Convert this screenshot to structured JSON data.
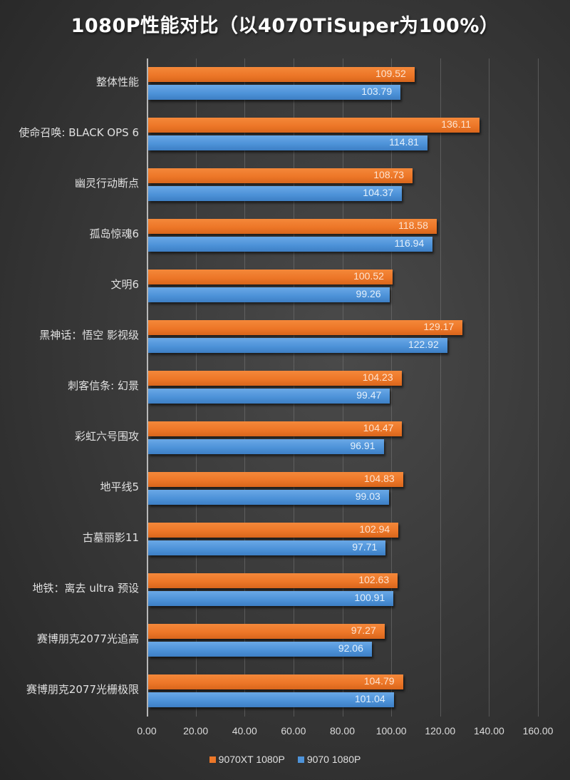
{
  "title": "1080P性能对比（以4070TiSuper为100%）",
  "colors": {
    "series1": "#ed7728",
    "series2": "#4e93d9",
    "background": "#3a3a3a"
  },
  "legend": [
    {
      "label": "9070XT 1080P",
      "color": "#ed7728"
    },
    {
      "label": "9070 1080P",
      "color": "#4e93d9"
    }
  ],
  "x_ticks": [
    "0.00",
    "20.00",
    "40.00",
    "60.00",
    "80.00",
    "100.00",
    "120.00",
    "140.00",
    "160.00"
  ],
  "categories": [
    {
      "label": "整体性能",
      "v1": "109.52",
      "v2": "103.79"
    },
    {
      "label": "使命召唤: BLACK OPS 6",
      "v1": "136.11",
      "v2": "114.81"
    },
    {
      "label": "幽灵行动断点",
      "v1": "108.73",
      "v2": "104.37"
    },
    {
      "label": "孤岛惊魂6",
      "v1": "118.58",
      "v2": "116.94"
    },
    {
      "label": "文明6",
      "v1": "100.52",
      "v2": "99.26"
    },
    {
      "label": "黑神话：悟空 影视级",
      "v1": "129.17",
      "v2": "122.92"
    },
    {
      "label": "刺客信条: 幻景",
      "v1": "104.23",
      "v2": "99.47"
    },
    {
      "label": "彩虹六号围攻",
      "v1": "104.47",
      "v2": "96.91"
    },
    {
      "label": "地平线5",
      "v1": "104.83",
      "v2": "99.03"
    },
    {
      "label": "古墓丽影11",
      "v1": "102.94",
      "v2": "97.71"
    },
    {
      "label": "地铁：离去 ultra 预设",
      "v1": "102.63",
      "v2": "100.91"
    },
    {
      "label": "赛博朋克2077光追高",
      "v1": "97.27",
      "v2": "92.06"
    },
    {
      "label": "赛博朋克2077光栅极限",
      "v1": "104.79",
      "v2": "101.04"
    }
  ],
  "chart_data": {
    "type": "bar",
    "orientation": "horizontal",
    "title": "1080P性能对比（以4070TiSuper为100%）",
    "xlabel": "",
    "ylabel": "",
    "xlim": [
      0,
      160
    ],
    "x_tick_step": 20,
    "grid": true,
    "legend_position": "bottom",
    "categories": [
      "整体性能",
      "使命召唤: BLACK OPS 6",
      "幽灵行动断点",
      "孤岛惊魂6",
      "文明6",
      "黑神话：悟空 影视级",
      "刺客信条: 幻景",
      "彩虹六号围攻",
      "地平线5",
      "古墓丽影11",
      "地铁：离去 ultra 预设",
      "赛博朋克2077光追高",
      "赛博朋克2077光栅极限"
    ],
    "series": [
      {
        "name": "9070XT 1080P",
        "color": "#ed7728",
        "values": [
          109.52,
          136.11,
          108.73,
          118.58,
          100.52,
          129.17,
          104.23,
          104.47,
          104.83,
          102.94,
          102.63,
          97.27,
          104.79
        ]
      },
      {
        "name": "9070 1080P",
        "color": "#4e93d9",
        "values": [
          103.79,
          114.81,
          104.37,
          116.94,
          99.26,
          122.92,
          99.47,
          96.91,
          99.03,
          97.71,
          100.91,
          92.06,
          101.04
        ]
      }
    ]
  }
}
